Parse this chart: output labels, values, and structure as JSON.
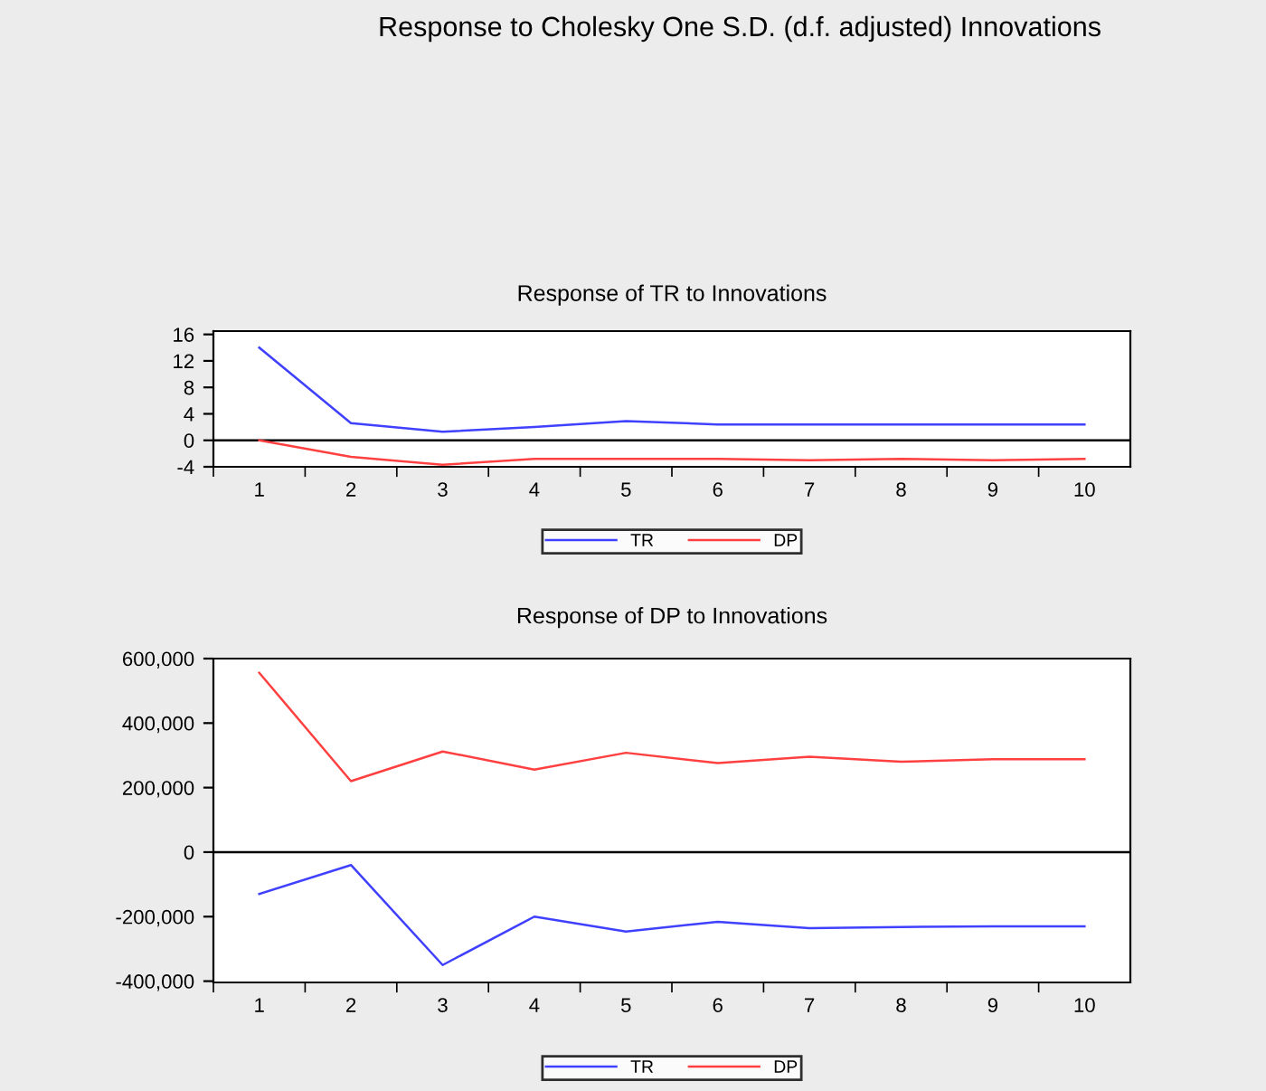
{
  "chart_data": [
    {
      "type": "line",
      "title": "Response to Cholesky One S.D. (d.f. adjusted) Innovations",
      "subtitle": "Response of TR to Innovations",
      "categories": [
        "1",
        "2",
        "3",
        "4",
        "5",
        "6",
        "7",
        "8",
        "9",
        "10"
      ],
      "series": [
        {
          "name": "TR",
          "color": "#4040ff",
          "values": [
            14.0,
            2.6,
            1.3,
            2.0,
            2.9,
            2.4,
            2.4,
            2.4,
            2.4,
            2.4
          ]
        },
        {
          "name": "DP",
          "color": "#ff4040",
          "values": [
            0,
            -2.5,
            -3.7,
            -2.8,
            -2.8,
            -2.8,
            -3.0,
            -2.8,
            -3.0,
            -2.8
          ]
        }
      ],
      "ylim": [
        -4,
        16.5
      ],
      "yticks": [
        -4,
        0,
        4,
        8,
        12,
        16
      ],
      "ref_lines": [
        {
          "axis": "y",
          "value": 0,
          "color": "#000000"
        }
      ],
      "grid": false,
      "legend": "bottom"
    },
    {
      "type": "line",
      "title": "Response of DP to Innovations",
      "categories": [
        "1",
        "2",
        "3",
        "4",
        "5",
        "6",
        "7",
        "8",
        "9",
        "10"
      ],
      "series": [
        {
          "name": "TR",
          "color": "#4040ff",
          "values": [
            -130000,
            -40000,
            -350000,
            -200000,
            -246000,
            -216000,
            -236000,
            -232000,
            -230000,
            -230000
          ]
        },
        {
          "name": "DP",
          "color": "#ff4040",
          "values": [
            556000,
            220000,
            312000,
            256000,
            308000,
            276000,
            296000,
            280000,
            288000,
            288000
          ]
        }
      ],
      "ylim": [
        -404000,
        600000
      ],
      "yticks": [
        {
          "value": -400000,
          "label": "-400,000"
        },
        {
          "value": -200000,
          "label": "-200,000"
        },
        {
          "value": 0,
          "label": "0"
        },
        {
          "value": 200000,
          "label": "200,000"
        },
        {
          "value": 400000,
          "label": "400,000"
        },
        {
          "value": 600000,
          "label": "600,000"
        }
      ],
      "ref_lines": [
        {
          "axis": "y",
          "value": 0,
          "color": "#000000"
        }
      ],
      "grid": false,
      "legend": "bottom"
    }
  ]
}
